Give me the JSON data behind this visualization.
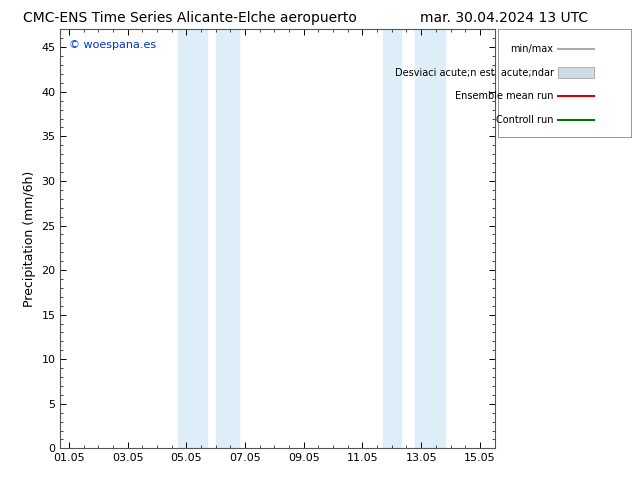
{
  "title_left": "CMC-ENS Time Series Alicante-Elche aeropuerto",
  "title_right": "mar. 30.04.2024 13 UTC",
  "ylabel": "Precipitation (mm/6h)",
  "watermark": "© woespana.es",
  "ylim": [
    0,
    47
  ],
  "yticks": [
    0,
    5,
    10,
    15,
    20,
    25,
    30,
    35,
    40,
    45
  ],
  "xtick_labels": [
    "01.05",
    "03.05",
    "05.05",
    "07.05",
    "09.05",
    "11.05",
    "13.05",
    "15.05"
  ],
  "xtick_positions": [
    0,
    2,
    4,
    6,
    8,
    10,
    12,
    14
  ],
  "xlim": [
    -0.3,
    14.5
  ],
  "shade_bands": [
    {
      "x_start": 3.7,
      "x_end": 4.7
    },
    {
      "x_start": 5.0,
      "x_end": 5.8
    },
    {
      "x_start": 10.7,
      "x_end": 11.3
    },
    {
      "x_start": 11.8,
      "x_end": 12.8
    }
  ],
  "shade_color": "#ddeef8",
  "legend_min_max_color": "#aaaaaa",
  "legend_std_color": "#ccdde8",
  "legend_mean_color": "#dd0000",
  "legend_control_color": "#007700",
  "title_fontsize": 10,
  "axis_label_fontsize": 9,
  "tick_fontsize": 8,
  "legend_fontsize": 7,
  "watermark_color": "#0033cc",
  "bg_color": "#ffffff"
}
